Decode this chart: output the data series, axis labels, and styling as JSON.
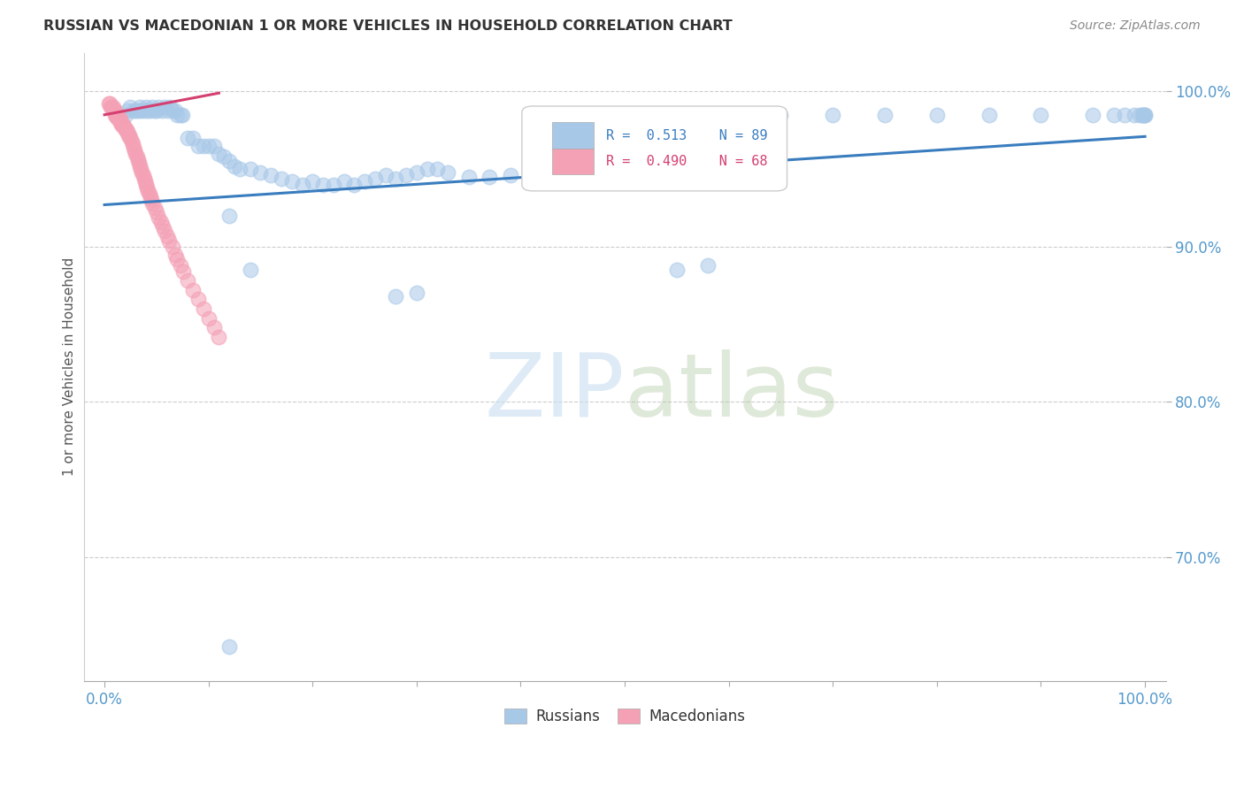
{
  "title": "RUSSIAN VS MACEDONIAN 1 OR MORE VEHICLES IN HOUSEHOLD CORRELATION CHART",
  "source": "Source: ZipAtlas.com",
  "ylabel": "1 or more Vehicles in Household",
  "r_russian": "0.513",
  "n_russian": "89",
  "r_macedonian": "0.490",
  "n_macedonian": "68",
  "russian_color": "#a8c8e8",
  "macedonian_color": "#f4a0b5",
  "russian_line_color": "#3a7dbf",
  "macedonian_line_color": "#d44070",
  "watermark_zip": "ZIP",
  "watermark_atlas": "atlas",
  "background_color": "#ffffff",
  "grid_color": "#cccccc",
  "title_color": "#333333",
  "axis_label_color": "#5599cc",
  "legend_russians": "Russians",
  "legend_macedonians": "Macedonians",
  "russians_x": [
    0.02,
    0.022,
    0.025,
    0.028,
    0.03,
    0.032,
    0.034,
    0.035,
    0.038,
    0.04,
    0.042,
    0.044,
    0.046,
    0.048,
    0.05,
    0.052,
    0.055,
    0.058,
    0.06,
    0.063,
    0.065,
    0.068,
    0.07,
    0.073,
    0.075,
    0.08,
    0.085,
    0.09,
    0.095,
    0.1,
    0.105,
    0.11,
    0.115,
    0.12,
    0.125,
    0.13,
    0.14,
    0.15,
    0.16,
    0.17,
    0.18,
    0.19,
    0.2,
    0.21,
    0.22,
    0.23,
    0.24,
    0.25,
    0.26,
    0.27,
    0.28,
    0.29,
    0.3,
    0.31,
    0.32,
    0.33,
    0.35,
    0.37,
    0.39,
    0.41,
    0.43,
    0.47,
    0.5,
    0.53,
    0.56,
    0.6,
    0.65,
    0.7,
    0.75,
    0.8,
    0.85,
    0.9,
    0.95,
    0.97,
    0.98,
    0.99,
    0.995,
    0.997,
    0.998,
    0.999,
    1.0,
    1.0,
    0.55,
    0.58,
    0.12,
    0.14,
    0.28,
    0.3,
    0.12
  ],
  "russians_y": [
    0.985,
    0.988,
    0.99,
    0.988,
    0.988,
    0.988,
    0.99,
    0.988,
    0.988,
    0.99,
    0.988,
    0.988,
    0.99,
    0.988,
    0.988,
    0.99,
    0.988,
    0.99,
    0.988,
    0.99,
    0.988,
    0.988,
    0.985,
    0.985,
    0.985,
    0.97,
    0.97,
    0.965,
    0.965,
    0.965,
    0.965,
    0.96,
    0.958,
    0.955,
    0.952,
    0.95,
    0.95,
    0.948,
    0.946,
    0.944,
    0.942,
    0.94,
    0.942,
    0.94,
    0.94,
    0.942,
    0.94,
    0.942,
    0.944,
    0.946,
    0.944,
    0.946,
    0.948,
    0.95,
    0.95,
    0.948,
    0.945,
    0.945,
    0.946,
    0.946,
    0.948,
    0.945,
    0.946,
    0.946,
    0.948,
    0.985,
    0.985,
    0.985,
    0.985,
    0.985,
    0.985,
    0.985,
    0.985,
    0.985,
    0.985,
    0.985,
    0.985,
    0.985,
    0.985,
    0.985,
    0.985,
    0.985,
    0.885,
    0.888,
    0.92,
    0.885,
    0.868,
    0.87,
    0.642
  ],
  "macedonians_x": [
    0.004,
    0.005,
    0.006,
    0.007,
    0.008,
    0.008,
    0.009,
    0.01,
    0.01,
    0.011,
    0.012,
    0.012,
    0.013,
    0.014,
    0.015,
    0.015,
    0.016,
    0.017,
    0.018,
    0.019,
    0.02,
    0.02,
    0.021,
    0.022,
    0.023,
    0.024,
    0.025,
    0.026,
    0.027,
    0.028,
    0.029,
    0.03,
    0.031,
    0.032,
    0.033,
    0.034,
    0.035,
    0.036,
    0.037,
    0.038,
    0.039,
    0.04,
    0.041,
    0.042,
    0.043,
    0.044,
    0.045,
    0.046,
    0.048,
    0.05,
    0.052,
    0.054,
    0.056,
    0.058,
    0.06,
    0.062,
    0.065,
    0.068,
    0.07,
    0.073,
    0.076,
    0.08,
    0.085,
    0.09,
    0.095,
    0.1,
    0.105,
    0.11
  ],
  "macedonians_y": [
    0.992,
    0.992,
    0.99,
    0.99,
    0.99,
    0.988,
    0.988,
    0.988,
    0.985,
    0.985,
    0.985,
    0.983,
    0.983,
    0.983,
    0.982,
    0.98,
    0.98,
    0.978,
    0.978,
    0.978,
    0.976,
    0.975,
    0.975,
    0.974,
    0.972,
    0.972,
    0.97,
    0.968,
    0.966,
    0.964,
    0.962,
    0.96,
    0.958,
    0.956,
    0.954,
    0.952,
    0.95,
    0.948,
    0.946,
    0.944,
    0.942,
    0.94,
    0.938,
    0.936,
    0.934,
    0.932,
    0.93,
    0.928,
    0.925,
    0.922,
    0.919,
    0.916,
    0.913,
    0.91,
    0.907,
    0.904,
    0.9,
    0.895,
    0.892,
    0.888,
    0.884,
    0.878,
    0.872,
    0.866,
    0.86,
    0.854,
    0.848,
    0.842
  ],
  "rus_trend_x": [
    0.0,
    1.0
  ],
  "rus_trend_y": [
    0.927,
    0.971
  ],
  "mac_trend_x": [
    0.0,
    0.11
  ],
  "mac_trend_y": [
    0.985,
    0.999
  ],
  "xlim": [
    -0.02,
    1.02
  ],
  "ylim": [
    0.62,
    1.025
  ],
  "yticks": [
    0.7,
    0.8,
    0.9,
    1.0
  ],
  "ytick_labels": [
    "70.0%",
    "80.0%",
    "90.0%",
    "100.0%"
  ]
}
